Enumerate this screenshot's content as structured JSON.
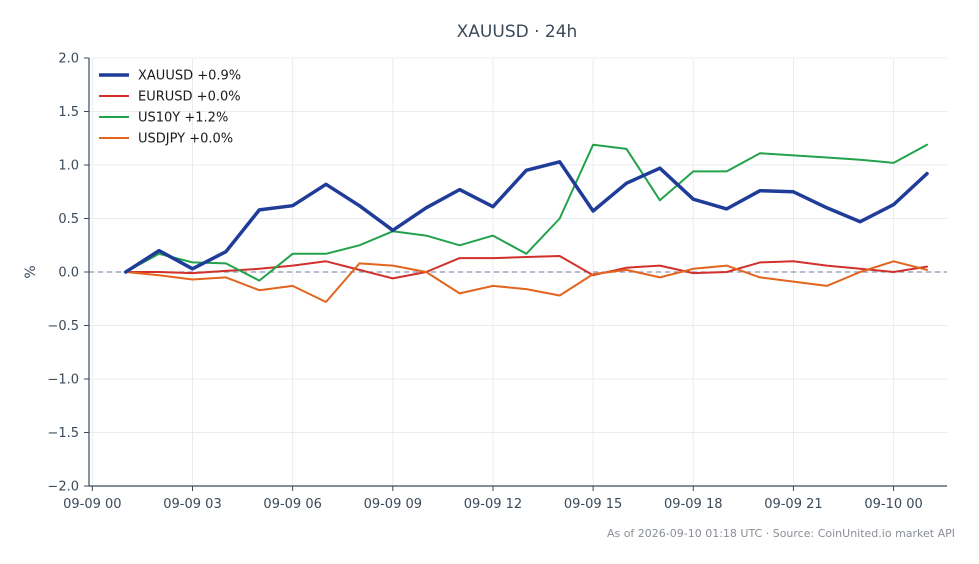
{
  "chart_data": {
    "type": "line",
    "title": "XAUUSD · 24h",
    "xlabel": "",
    "ylabel": "%",
    "ylim": [
      -2.0,
      2.0
    ],
    "xlim": [
      -0.1,
      25.6
    ],
    "grid": true,
    "legend_position": "top-left",
    "reference_line": {
      "y": 0,
      "style": "dashed",
      "color": "#8a94b0"
    },
    "x_ticks": [
      {
        "value": 0,
        "label": "09-09 00"
      },
      {
        "value": 3,
        "label": "09-09 03"
      },
      {
        "value": 6,
        "label": "09-09 06"
      },
      {
        "value": 9,
        "label": "09-09 09"
      },
      {
        "value": 12,
        "label": "09-09 12"
      },
      {
        "value": 15,
        "label": "09-09 15"
      },
      {
        "value": 18,
        "label": "09-09 18"
      },
      {
        "value": 21,
        "label": "09-09 21"
      },
      {
        "value": 24,
        "label": "09-10 00"
      }
    ],
    "y_ticks": [
      {
        "value": 2.0,
        "label": "2.0"
      },
      {
        "value": 1.5,
        "label": "1.5"
      },
      {
        "value": 1.0,
        "label": "1.0"
      },
      {
        "value": 0.5,
        "label": "0.5"
      },
      {
        "value": 0.0,
        "label": "0.0"
      },
      {
        "value": -0.5,
        "label": "−0.5"
      },
      {
        "value": -1.0,
        "label": "−1.0"
      },
      {
        "value": -1.5,
        "label": "−1.5"
      },
      {
        "value": -2.0,
        "label": "−2.0"
      }
    ],
    "x": [
      1,
      2,
      3,
      4,
      5,
      6,
      7,
      8,
      9,
      10,
      11,
      12,
      13,
      14,
      15,
      16,
      17,
      18,
      19,
      20,
      21,
      22,
      23,
      24,
      25
    ],
    "series": [
      {
        "name": "XAUUSD +0.9%",
        "color": "#1f3c99",
        "width": 3.5,
        "values": [
          0.0,
          0.2,
          0.03,
          0.19,
          0.58,
          0.62,
          0.82,
          0.62,
          0.39,
          0.6,
          0.77,
          0.61,
          0.95,
          1.03,
          0.57,
          0.83,
          0.97,
          0.68,
          0.59,
          0.76,
          0.75,
          0.6,
          0.47,
          0.63,
          0.92
        ]
      },
      {
        "name": "EURUSD +0.0%",
        "color": "#d1302b",
        "width": 2,
        "values": [
          0.0,
          0.0,
          -0.01,
          0.01,
          0.03,
          0.06,
          0.1,
          0.02,
          -0.06,
          0.0,
          0.13,
          0.13,
          0.14,
          0.15,
          -0.03,
          0.04,
          0.06,
          -0.01,
          0.0,
          0.09,
          0.1,
          0.06,
          0.03,
          0.0,
          0.05
        ]
      },
      {
        "name": "US10Y +1.2%",
        "color": "#22a24a",
        "width": 2,
        "values": [
          0.0,
          0.17,
          0.09,
          0.08,
          -0.08,
          0.17,
          0.17,
          0.25,
          0.38,
          0.34,
          0.25,
          0.34,
          0.17,
          0.5,
          1.19,
          1.15,
          0.67,
          0.94,
          0.94,
          1.11,
          1.09,
          1.07,
          1.05,
          1.02,
          1.19
        ]
      },
      {
        "name": "USDJPY +0.0%",
        "color": "#e3651d",
        "width": 2,
        "values": [
          0.0,
          -0.03,
          -0.07,
          -0.05,
          -0.17,
          -0.13,
          -0.28,
          0.08,
          0.06,
          0.0,
          -0.2,
          -0.13,
          -0.16,
          -0.22,
          -0.02,
          0.02,
          -0.05,
          0.03,
          0.06,
          -0.05,
          -0.09,
          -0.13,
          0.0,
          0.1,
          0.02
        ]
      }
    ]
  },
  "footer": "As of 2026-09-10 01:18 UTC · Source: CoinUnited.io market API"
}
